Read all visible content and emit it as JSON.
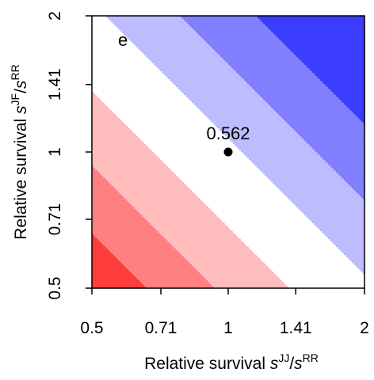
{
  "chart_data": {
    "type": "heatmap",
    "panel_label": "e",
    "x_axis": {
      "scale": "log2",
      "range": [
        0.5,
        2
      ],
      "ticks": [
        0.5,
        0.71,
        1,
        1.41,
        2
      ],
      "tick_labels": [
        "0.5",
        "0.71",
        "1",
        "1.41",
        "2"
      ],
      "label_main": "Relative survival ",
      "label_sym": "s",
      "label_sup": "JJ",
      "label_slash": "/",
      "label_sym2": "s",
      "label_sup2": "RR"
    },
    "y_axis": {
      "scale": "log2",
      "range": [
        0.5,
        2
      ],
      "ticks": [
        0.5,
        0.71,
        1,
        1.41,
        2
      ],
      "tick_labels": [
        "0.5",
        "0.71",
        "1",
        "1.41",
        "2"
      ],
      "label_main": "Relative survival ",
      "label_sym": "s",
      "label_sup": "JF",
      "label_slash": "/",
      "label_sym2": "s",
      "label_sup2": "RR"
    },
    "contour_bands": [
      {
        "level_sum_max": -1.6,
        "color": "#ff3c3c"
      },
      {
        "level_sum_max": -1.1,
        "color": "#ff8080"
      },
      {
        "level_sum_max": -0.55,
        "color": "#ffbcbc"
      },
      {
        "level_sum_max": 0.1,
        "color": "#ffffff"
      },
      {
        "level_sum_max": 0.65,
        "color": "#bcbcff"
      },
      {
        "level_sum_max": 1.2,
        "color": "#8080ff"
      },
      {
        "level_sum_max": 99,
        "color": "#3c3cff"
      }
    ],
    "point": {
      "x": 1,
      "y": 1,
      "label": "0.562"
    },
    "grid": false,
    "legend": "none"
  }
}
